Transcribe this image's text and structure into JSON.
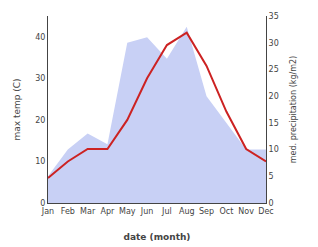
{
  "chart_data": {
    "type": "line",
    "categories": [
      "Jan",
      "Feb",
      "Mar",
      "Apr",
      "May",
      "Jun",
      "Jul",
      "Aug",
      "Sep",
      "Oct",
      "Nov",
      "Dec"
    ],
    "series": [
      {
        "type": "area",
        "axis": "y2",
        "color": "#c8d0f5",
        "values": [
          5,
          10,
          13,
          11,
          30,
          31,
          27,
          33,
          20,
          15,
          10,
          10
        ]
      },
      {
        "type": "line",
        "color": "#cc2222",
        "values": [
          6,
          10,
          13,
          13,
          20,
          30,
          38,
          41,
          33,
          22,
          13,
          10
        ]
      }
    ],
    "xlabel": "date (month)",
    "ylabel": "max temp (C)",
    "y2label": "med. precipitation (kg/m2)",
    "ylim": [
      0,
      45
    ],
    "yticks": [
      0,
      10,
      20,
      30,
      40
    ],
    "y2lim": [
      0,
      35
    ],
    "y2ticks": [
      0,
      5,
      10,
      15,
      20,
      25,
      30,
      35
    ],
    "grid": false
  }
}
